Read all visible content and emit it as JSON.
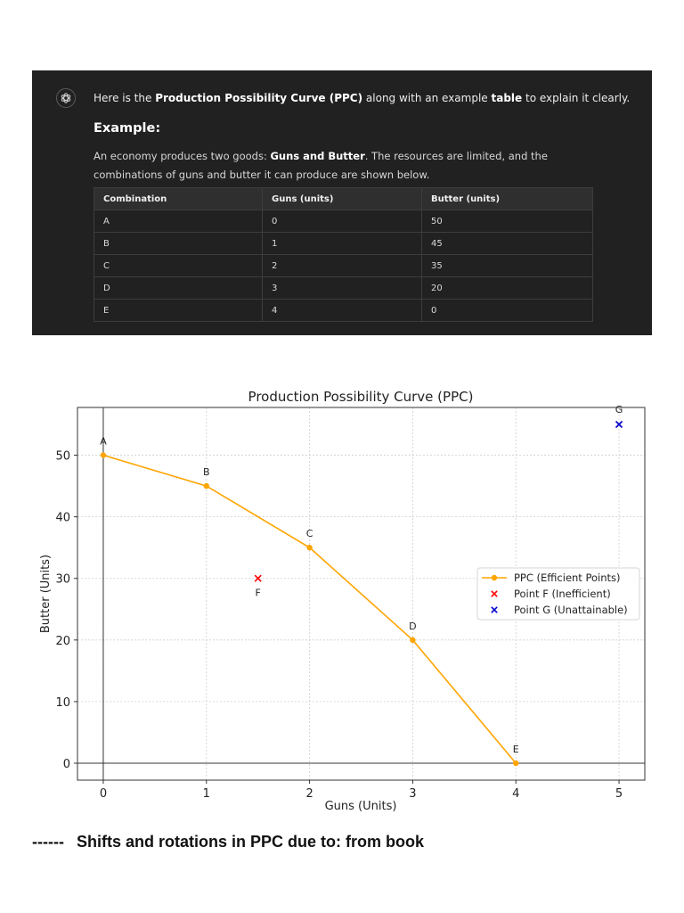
{
  "chat": {
    "intro_pre": "Here is the ",
    "intro_bold1": "Production Possibility Curve (PPC)",
    "intro_mid": " along with an example ",
    "intro_bold2": "table",
    "intro_post": " to explain it clearly.",
    "example_heading": "Example:",
    "desc_pre": "An economy produces two goods: ",
    "desc_bold": "Guns and Butter",
    "desc_post": ". The resources are limited, and the combinations of guns and butter it can produce are shown below.",
    "table": {
      "headers": [
        "Combination",
        "Guns (units)",
        "Butter (units)"
      ],
      "rows": [
        [
          "A",
          "0",
          "50"
        ],
        [
          "B",
          "1",
          "45"
        ],
        [
          "C",
          "2",
          "35"
        ],
        [
          "D",
          "3",
          "20"
        ],
        [
          "E",
          "4",
          "0"
        ]
      ]
    }
  },
  "chart_data": {
    "type": "line",
    "title": "Production Possibility Curve (PPC)",
    "xlabel": "Guns (Units)",
    "ylabel": "Butter (Units)",
    "xlim": [
      -0.25,
      5.25
    ],
    "ylim": [
      -2.75,
      57.75
    ],
    "xticks": [
      0,
      1,
      2,
      3,
      4,
      5
    ],
    "yticks": [
      0,
      10,
      20,
      30,
      40,
      50
    ],
    "grid": true,
    "legend_position": "center-right",
    "series": [
      {
        "name": "PPC (Efficient Points)",
        "color": "#FFA500",
        "marker": "circle",
        "points": [
          {
            "label": "A",
            "x": 0,
            "y": 50
          },
          {
            "label": "B",
            "x": 1,
            "y": 45
          },
          {
            "label": "C",
            "x": 2,
            "y": 35
          },
          {
            "label": "D",
            "x": 3,
            "y": 20
          },
          {
            "label": "E",
            "x": 4,
            "y": 0
          }
        ]
      },
      {
        "name": "Point F (Inefficient)",
        "color": "#FF0000",
        "marker": "x",
        "points": [
          {
            "label": "F",
            "x": 1.5,
            "y": 30
          }
        ]
      },
      {
        "name": "Point G (Unattainable)",
        "color": "#0000CC",
        "marker": "x",
        "points": [
          {
            "label": "G",
            "x": 5,
            "y": 55
          }
        ]
      }
    ]
  },
  "footer": {
    "dashes": "------",
    "text": "Shifts and rotations in PPC due to: from book"
  }
}
